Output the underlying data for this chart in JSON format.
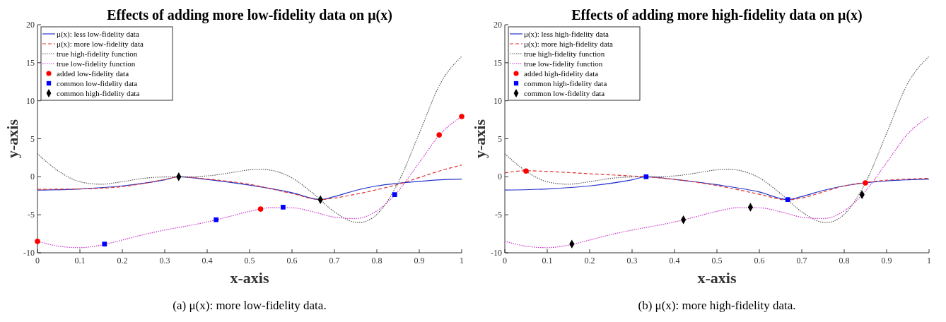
{
  "chart_data": [
    {
      "type": "line",
      "title": "Effects of adding more low-fidelity data on μ(x)",
      "xlabel": "x-axis",
      "ylabel": "y-axis",
      "xlim": [
        0,
        1
      ],
      "ylim": [
        -10,
        20
      ],
      "xticks": [
        0,
        0.1,
        0.2,
        0.3,
        0.4,
        0.5,
        0.6,
        0.7,
        0.8,
        0.9,
        1
      ],
      "yticks": [
        -10,
        -5,
        0,
        5,
        10,
        15,
        20
      ],
      "grid": false,
      "legend": "top left",
      "annotations": [
        "(a) μ(x): more low-fidelity data."
      ],
      "series": [
        {
          "name": "μ(x): less low-fidelity data",
          "color": "#2233cc",
          "line_style": "solid",
          "x": [
            0,
            0.1,
            0.2,
            0.3,
            0.333,
            0.4,
            0.5,
            0.6,
            0.667,
            0.7,
            0.75,
            0.8,
            0.85,
            0.9,
            0.95,
            1
          ],
          "values": [
            -1.75,
            -1.6,
            -1.2,
            -0.4,
            0,
            -0.35,
            -1.1,
            -2.1,
            -3.0,
            -2.6,
            -1.8,
            -1.2,
            -0.85,
            -0.6,
            -0.4,
            -0.3
          ]
        },
        {
          "name": "μ(x): more low-fidelity data",
          "color": "#dd3333",
          "line_style": "dashed",
          "x": [
            0,
            0.1,
            0.2,
            0.3,
            0.333,
            0.4,
            0.5,
            0.6,
            0.667,
            0.7,
            0.75,
            0.8,
            0.85,
            0.9,
            0.95,
            1
          ],
          "values": [
            -1.65,
            -1.6,
            -1.3,
            -0.35,
            0,
            -0.3,
            -1.0,
            -2.2,
            -3.0,
            -2.8,
            -2.3,
            -1.7,
            -1.0,
            -0.1,
            0.8,
            1.55
          ]
        },
        {
          "name": "true high-fidelity function",
          "color": "#555555",
          "line_style": "dotted",
          "x": [
            0,
            0.05,
            0.1,
            0.15,
            0.2,
            0.25,
            0.3,
            0.35,
            0.4,
            0.45,
            0.5,
            0.525,
            0.55,
            0.6,
            0.65,
            0.7,
            0.75,
            0.76,
            0.775,
            0.8,
            0.85,
            0.9,
            0.95,
            1
          ],
          "values": [
            3.03,
            0.74,
            -0.66,
            -0.98,
            -0.64,
            -0.21,
            -0.02,
            0,
            0.11,
            0.48,
            0.91,
            0.99,
            0.87,
            -0.15,
            -2.21,
            -4.61,
            -5.99,
            -6.02,
            -5.84,
            -4.95,
            -0.8,
            5.71,
            12.3,
            15.83
          ]
        },
        {
          "name": "true low-fidelity function",
          "color": "#cc33cc",
          "line_style": "dotted",
          "x": [
            0,
            0.05,
            0.1,
            0.15,
            0.2,
            0.25,
            0.3,
            0.35,
            0.4,
            0.45,
            0.5,
            0.55,
            0.6,
            0.65,
            0.7,
            0.75,
            0.8,
            0.85,
            0.9,
            0.95,
            1
          ],
          "values": [
            -8.48,
            -9.13,
            -9.33,
            -8.99,
            -8.32,
            -7.61,
            -7.01,
            -6.5,
            -5.95,
            -5.26,
            -4.55,
            -4.07,
            -4.08,
            -4.61,
            -5.31,
            -5.5,
            -4.48,
            -1.9,
            1.86,
            5.65,
            7.92
          ]
        },
        {
          "name": "added low-fidelity data",
          "type": "scatter",
          "marker": "circle",
          "color": "#ff0000",
          "x": [
            0,
            0.526,
            0.947,
            1
          ],
          "values": [
            -8.5,
            -4.25,
            5.5,
            7.92
          ]
        },
        {
          "name": "common low-fidelity data",
          "type": "scatter",
          "marker": "square",
          "color": "#0000ff",
          "x": [
            0.158,
            0.421,
            0.579,
            0.842
          ],
          "values": [
            -8.85,
            -5.65,
            -4.0,
            -2.35
          ]
        },
        {
          "name": "common high-fidelity data",
          "type": "scatter",
          "marker": "diamond",
          "color": "#000000",
          "x": [
            0.333,
            0.667
          ],
          "values": [
            0,
            -3.0
          ]
        }
      ]
    },
    {
      "type": "line",
      "title": "Effects of adding more high-fidelity data on μ(x)",
      "xlabel": "x-axis",
      "ylabel": "y-axis",
      "xlim": [
        0,
        1
      ],
      "ylim": [
        -10,
        20
      ],
      "xticks": [
        0,
        0.1,
        0.2,
        0.3,
        0.4,
        0.5,
        0.6,
        0.7,
        0.8,
        0.9,
        1
      ],
      "yticks": [
        -10,
        -5,
        0,
        5,
        10,
        15,
        20
      ],
      "grid": false,
      "legend": "top left",
      "annotations": [
        "(b) μ(x): more high-fidelity data."
      ],
      "series": [
        {
          "name": "μ(x): less high-fidelity data",
          "color": "#2233cc",
          "line_style": "solid",
          "x": [
            0,
            0.1,
            0.2,
            0.3,
            0.333,
            0.4,
            0.5,
            0.6,
            0.667,
            0.7,
            0.75,
            0.8,
            0.85,
            0.9,
            0.95,
            1
          ],
          "values": [
            -1.75,
            -1.6,
            -1.2,
            -0.4,
            0,
            -0.35,
            -1.05,
            -2.0,
            -3.0,
            -2.6,
            -1.8,
            -1.2,
            null,
            -0.55,
            -0.4,
            -0.3
          ]
        },
        {
          "name": "μ(x): more high-fidelity data",
          "color": "#dd3333",
          "line_style": "dashed",
          "x": [
            0,
            0.05,
            0.1,
            0.2,
            0.3,
            0.333,
            0.4,
            0.5,
            0.6,
            0.667,
            0.7,
            0.75,
            0.8,
            0.85,
            0.9,
            0.95,
            1
          ],
          "values": [
            0.5,
            0.8,
            0.7,
            0.4,
            0.1,
            0,
            -0.35,
            -1.15,
            -2.3,
            -3.05,
            -2.8,
            -2.0,
            -1.2,
            -0.75,
            -0.45,
            -0.3,
            -0.2
          ]
        },
        {
          "name": "true high-fidelity function",
          "color": "#555555",
          "line_style": "dotted",
          "x": [
            0,
            0.05,
            0.1,
            0.15,
            0.2,
            0.25,
            0.3,
            0.35,
            0.4,
            0.45,
            0.5,
            0.525,
            0.55,
            0.6,
            0.65,
            0.7,
            0.75,
            0.76,
            0.775,
            0.8,
            0.85,
            0.9,
            0.95,
            1
          ],
          "values": [
            3.03,
            0.74,
            -0.66,
            -0.98,
            -0.64,
            -0.21,
            -0.02,
            0,
            0.11,
            0.48,
            0.91,
            0.99,
            0.87,
            -0.15,
            -2.21,
            -4.61,
            -5.99,
            -6.02,
            -5.84,
            -4.95,
            -0.8,
            5.71,
            12.3,
            15.83
          ]
        },
        {
          "name": "true low-fidelity function",
          "color": "#cc33cc",
          "line_style": "dotted",
          "x": [
            0,
            0.05,
            0.1,
            0.15,
            0.2,
            0.25,
            0.3,
            0.35,
            0.4,
            0.45,
            0.5,
            0.55,
            0.6,
            0.65,
            0.7,
            0.75,
            0.8,
            0.85,
            0.9,
            0.95,
            1
          ],
          "values": [
            -8.48,
            -9.13,
            -9.33,
            -8.99,
            -8.32,
            -7.61,
            -7.01,
            -6.5,
            -5.95,
            -5.26,
            -4.55,
            -4.07,
            -4.08,
            -4.61,
            -5.31,
            -5.5,
            -4.48,
            -1.9,
            1.86,
            5.65,
            7.92
          ]
        },
        {
          "name": "added high-fidelity data",
          "type": "scatter",
          "marker": "circle",
          "color": "#ff0000",
          "x": [
            0.05,
            0.85
          ],
          "values": [
            0.75,
            -0.8
          ]
        },
        {
          "name": "common high-fidelity data",
          "type": "scatter",
          "marker": "square",
          "color": "#0000ff",
          "x": [
            0.333,
            0.667
          ],
          "values": [
            0,
            -3.0
          ]
        },
        {
          "name": "common low-fidelity data",
          "type": "scatter",
          "marker": "diamond",
          "color": "#000000",
          "x": [
            0.158,
            0.421,
            0.579,
            0.842
          ],
          "values": [
            -8.85,
            -5.65,
            -4.0,
            -2.35
          ]
        }
      ]
    }
  ]
}
